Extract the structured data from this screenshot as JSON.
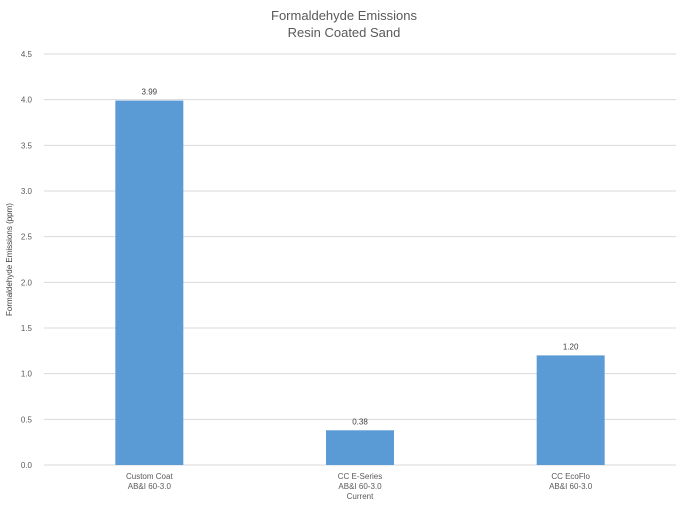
{
  "chart_data": {
    "type": "bar",
    "title": "Formaldehyde Emissions",
    "subtitle": "Resin Coated Sand",
    "xlabel": "",
    "ylabel": "Formaldehyde Emissions (ppm)",
    "ylim": [
      0,
      4.5
    ],
    "yticks": [
      "0.0",
      "0.5",
      "1.0",
      "1.5",
      "2.0",
      "2.5",
      "3.0",
      "3.5",
      "4.0",
      "4.5"
    ],
    "categories": [
      [
        "Custom Coat",
        "AB&I 60-3.0"
      ],
      [
        "CC E-Series",
        "AB&I 60-3.0",
        "Current"
      ],
      [
        "CC EcoFlo",
        "AB&I 60-3.0"
      ]
    ],
    "values": [
      3.99,
      0.38,
      1.2
    ],
    "data_labels": [
      "3.99",
      "0.38",
      "1.20"
    ],
    "grid": true,
    "legend": "none",
    "bar_color": "#5b9bd5",
    "grid_color": "#d9d9d9"
  }
}
